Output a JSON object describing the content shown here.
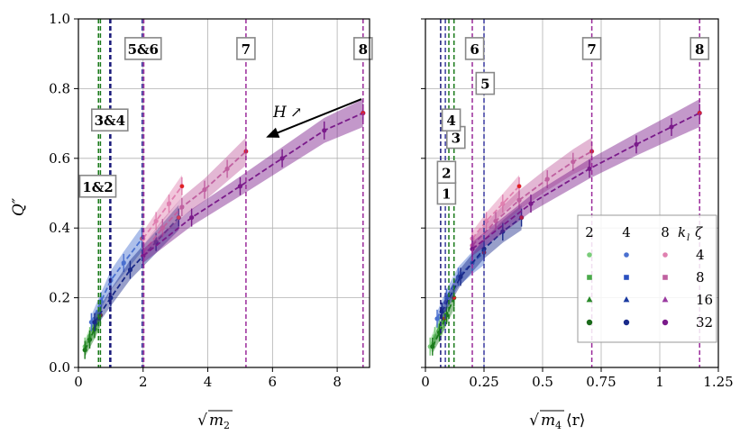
{
  "chart_data": [
    {
      "type": "line",
      "panel": "left",
      "ylabel": "Q''",
      "xlabel": "√m₂",
      "xlim": [
        0,
        9
      ],
      "ylim": [
        0,
        1
      ],
      "xticks": [
        "0",
        "2",
        "4",
        "6",
        "8"
      ],
      "yticks": [
        "0.0",
        "0.2",
        "0.4",
        "0.6",
        "0.8",
        "1.0"
      ],
      "grid": true,
      "annotation": {
        "text": "H ↗",
        "arrow_from": [
          8.75,
          0.77
        ],
        "arrow_to": [
          5.8,
          0.66
        ]
      },
      "vlines": [
        {
          "x": 0.62,
          "color": "#1a7a1a"
        },
        {
          "x": 0.68,
          "color": "#1a7a1a"
        },
        {
          "x": 0.97,
          "color": "#1a1a7a"
        },
        {
          "x": 1.0,
          "color": "#1a1a7a"
        },
        {
          "x": 1.97,
          "color": "#3a3aa0"
        },
        {
          "x": 2.02,
          "color": "#9a2a9a"
        },
        {
          "x": 5.18,
          "color": "#9a2a9a"
        },
        {
          "x": 8.8,
          "color": "#9a2a9a"
        }
      ],
      "box_labels": [
        {
          "text": "1&2",
          "x": 0.6,
          "y": 0.52
        },
        {
          "text": "3&4",
          "x": 0.97,
          "y": 0.71
        },
        {
          "text": "5&6",
          "x": 2.0,
          "y": 0.915
        },
        {
          "text": "7",
          "x": 5.18,
          "y": 0.915
        },
        {
          "text": "8",
          "x": 8.8,
          "y": 0.915
        }
      ],
      "series": [
        {
          "name": "k_l=2, ζ=4",
          "color": "#7acc7a",
          "x": [
            0.2,
            0.35,
            0.5,
            0.62
          ],
          "y": [
            0.06,
            0.09,
            0.12,
            0.14
          ]
        },
        {
          "name": "k_l=2, ζ=32",
          "color": "#1a7a1a",
          "x": [
            0.2,
            0.35,
            0.5,
            0.68
          ],
          "y": [
            0.05,
            0.08,
            0.11,
            0.15
          ]
        },
        {
          "name": "k_l=4, ζ=4",
          "color": "#4a70d0",
          "x": [
            0.4,
            0.7,
            1.0,
            1.4,
            1.97
          ],
          "y": [
            0.13,
            0.19,
            0.25,
            0.3,
            0.37
          ]
        },
        {
          "name": "k_l=4, ζ=32",
          "color": "#1a2a8a",
          "x": [
            0.5,
            1.0,
            1.6,
            2.4,
            3.1
          ],
          "y": [
            0.13,
            0.2,
            0.28,
            0.36,
            0.43
          ]
        },
        {
          "name": "k_l=8, ζ=4",
          "color": "#e080b0",
          "x": [
            2.0,
            2.4,
            2.8,
            3.2
          ],
          "y": [
            0.37,
            0.42,
            0.47,
            0.52
          ]
        },
        {
          "name": "k_l=8, ζ=8",
          "color": "#c060a0",
          "x": [
            2.0,
            2.6,
            3.2,
            3.9,
            4.6,
            5.18
          ],
          "y": [
            0.33,
            0.4,
            0.46,
            0.51,
            0.57,
            0.62
          ]
        },
        {
          "name": "k_l=8, ζ=32",
          "color": "#7a1a8a",
          "x": [
            2.0,
            3.5,
            5.0,
            6.3,
            7.6,
            8.8
          ],
          "y": [
            0.32,
            0.43,
            0.52,
            0.6,
            0.68,
            0.73
          ]
        }
      ]
    },
    {
      "type": "line",
      "panel": "right",
      "xlabel": "√m₄⟨r⟩",
      "xlim": [
        0,
        1.25
      ],
      "ylim": [
        0,
        1
      ],
      "xticks": [
        "0",
        "0.25",
        "0.5",
        "0.75",
        "1",
        "1.25"
      ],
      "grid": true,
      "vlines": [
        {
          "x": 0.065,
          "color": "#1a1a7a"
        },
        {
          "x": 0.085,
          "color": "#3a3aa0"
        },
        {
          "x": 0.1,
          "color": "#1a7a1a"
        },
        {
          "x": 0.122,
          "color": "#1a7a1a"
        },
        {
          "x": 0.2,
          "color": "#9a2a9a"
        },
        {
          "x": 0.25,
          "color": "#3a3aa0"
        },
        {
          "x": 0.71,
          "color": "#9a2a9a"
        },
        {
          "x": 1.17,
          "color": "#9a2a9a"
        }
      ],
      "box_labels": [
        {
          "text": "1",
          "x": 0.09,
          "y": 0.5
        },
        {
          "text": "2",
          "x": 0.09,
          "y": 0.56
        },
        {
          "text": "3",
          "x": 0.13,
          "y": 0.66
        },
        {
          "text": "4",
          "x": 0.11,
          "y": 0.71
        },
        {
          "text": "5",
          "x": 0.255,
          "y": 0.815
        },
        {
          "text": "6",
          "x": 0.21,
          "y": 0.915
        },
        {
          "text": "7",
          "x": 0.71,
          "y": 0.915
        },
        {
          "text": "8",
          "x": 1.17,
          "y": 0.915
        }
      ],
      "series": [
        {
          "name": "k_l=2, ζ=4",
          "color": "#7acc7a",
          "x": [
            0.02,
            0.04,
            0.06,
            0.08
          ],
          "y": [
            0.06,
            0.09,
            0.12,
            0.14
          ]
        },
        {
          "name": "k_l=2, ζ=32",
          "color": "#1a7a1a",
          "x": [
            0.03,
            0.06,
            0.09,
            0.122
          ],
          "y": [
            0.06,
            0.1,
            0.15,
            0.2
          ]
        },
        {
          "name": "k_l=4, ζ=4",
          "color": "#4a70d0",
          "x": [
            0.05,
            0.09,
            0.14,
            0.2,
            0.25
          ],
          "y": [
            0.14,
            0.2,
            0.26,
            0.3,
            0.33
          ]
        },
        {
          "name": "k_l=4, ζ=32",
          "color": "#1a2a8a",
          "x": [
            0.07,
            0.15,
            0.25,
            0.33,
            0.41
          ],
          "y": [
            0.16,
            0.26,
            0.34,
            0.39,
            0.43
          ]
        },
        {
          "name": "k_l=8, ζ=4",
          "color": "#e080b0",
          "x": [
            0.2,
            0.26,
            0.33,
            0.4
          ],
          "y": [
            0.37,
            0.42,
            0.47,
            0.52
          ]
        },
        {
          "name": "k_l=8, ζ=8",
          "color": "#c060a0",
          "x": [
            0.2,
            0.3,
            0.4,
            0.52,
            0.63,
            0.71
          ],
          "y": [
            0.35,
            0.42,
            0.48,
            0.54,
            0.59,
            0.62
          ]
        },
        {
          "name": "k_l=8, ζ=32",
          "color": "#7a1a8a",
          "x": [
            0.2,
            0.45,
            0.7,
            0.9,
            1.05,
            1.17
          ],
          "y": [
            0.34,
            0.47,
            0.57,
            0.64,
            0.69,
            0.73
          ]
        }
      ],
      "legend": {
        "placement": "lower-right",
        "column_headers": [
          "2",
          "4",
          "8"
        ],
        "title": "k_l ζ",
        "title_parts": {
          "k": "k",
          "sub": "l",
          "zeta": "ζ"
        },
        "row_labels": [
          "4",
          "8",
          "16",
          "32"
        ],
        "markers": [
          "circle",
          "square",
          "triangle",
          "hexagon"
        ],
        "colors": [
          [
            "#7acc7a",
            "#4a70d0",
            "#e080b0"
          ],
          [
            "#4aaa4a",
            "#2a50c0",
            "#c060a0"
          ],
          [
            "#2a8a2a",
            "#1a3aa0",
            "#9a3aa0"
          ],
          [
            "#1a6a1a",
            "#1a2a8a",
            "#7a1a8a"
          ]
        ]
      }
    }
  ],
  "labels": {
    "ylabel": "Q″",
    "left_xlabel_sqrt": "√",
    "left_xlabel_m": "m",
    "left_xlabel_sub": "2",
    "right_xlabel_sqrt": "√",
    "right_xlabel_m": "m",
    "right_xlabel_sub": "4",
    "right_xlabel_r": "⟨r⟩",
    "h_label": "H",
    "h_arrow": "↗"
  }
}
